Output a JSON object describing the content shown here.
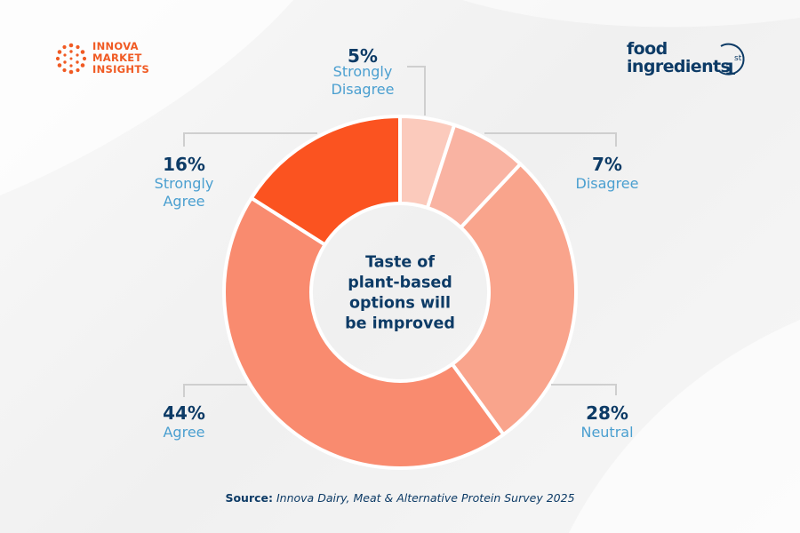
{
  "logos": {
    "innova": {
      "lines": [
        "INNOVA",
        "MARKET",
        "INSIGHTS"
      ],
      "color": "#f05a23"
    },
    "food_ingredients": {
      "line1": "food",
      "line2": "ingredients",
      "suffix": "1",
      "superscript": "st",
      "color": "#0d3b66"
    }
  },
  "source": {
    "label": "Source:",
    "text": "Innova Dairy, Meat & Alternative Protein Survey 2025"
  },
  "chart_data": {
    "type": "pie",
    "variant": "donut",
    "center_label": [
      "Taste of",
      "plant-based",
      "options will",
      "be improved"
    ],
    "categories": [
      "Strongly Disagree",
      "Disagree",
      "Neutral",
      "Agree",
      "Strongly Agree"
    ],
    "values": [
      5,
      7,
      28,
      44,
      16
    ],
    "value_labels": [
      "5%",
      "7%",
      "28%",
      "44%",
      "16%"
    ],
    "category_labels": [
      [
        "Strongly",
        "Disagree"
      ],
      [
        "Disagree"
      ],
      [
        "Neutral"
      ],
      [
        "Agree"
      ],
      [
        "Strongly",
        "Agree"
      ]
    ],
    "colors": [
      "#fbcabc",
      "#f9b3a2",
      "#f9a48c",
      "#f98b6f",
      "#fb5320"
    ],
    "value_color": "#0d3b66",
    "label_color": "#4a9fd0",
    "start": "12 o'clock",
    "direction": "clockwise"
  }
}
